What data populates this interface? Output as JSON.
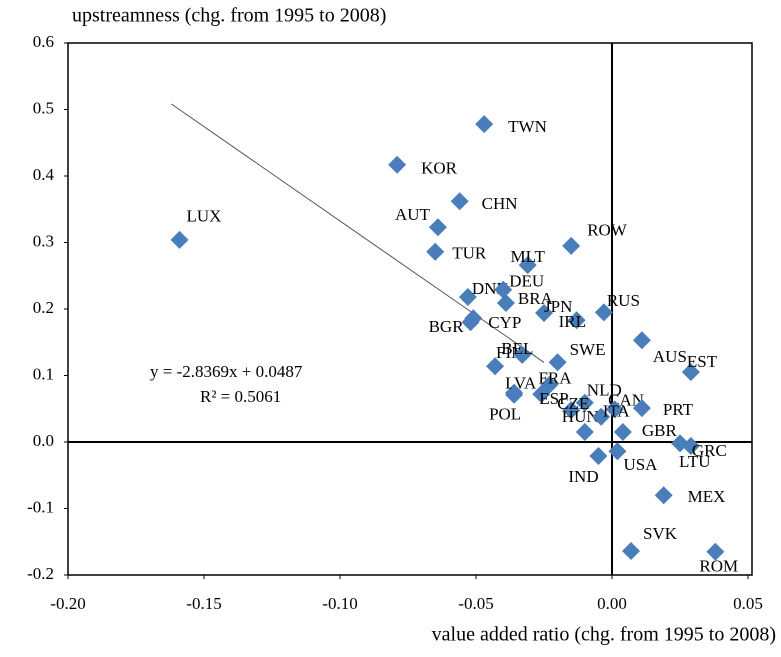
{
  "chart_data": {
    "type": "scatter",
    "x_axis_label": "value added ratio (chg. from 1995 to 2008)",
    "y_axis_label": "upstreamness (chg. from 1995 to 2008)",
    "labels": [
      "LUX",
      "KOR",
      "TWN",
      "CHN",
      "AUT",
      "TUR",
      "ROW",
      "MLT",
      "DNK",
      "DEU",
      "BRA",
      "JPN",
      "IRL",
      "RUS",
      "BGR",
      "CYP",
      "FIN",
      "BEL",
      "SWE",
      "AUS",
      "EST",
      "LVA",
      "POL",
      "ESP",
      "FRA",
      "NLD",
      "CZE",
      "HUN",
      "CAN",
      "ITA",
      "PRT",
      "GBR",
      "USA",
      "IND",
      "LTU",
      "GRC",
      "MEX",
      "SVK",
      "ROM"
    ],
    "x": [
      -0.159,
      -0.079,
      -0.047,
      -0.056,
      -0.064,
      -0.065,
      -0.015,
      -0.031,
      -0.053,
      -0.04,
      -0.039,
      -0.025,
      -0.013,
      -0.003,
      -0.052,
      -0.051,
      -0.043,
      -0.033,
      -0.02,
      0.011,
      0.029,
      -0.036,
      -0.036,
      -0.026,
      -0.023,
      -0.01,
      -0.015,
      -0.01,
      -0.004,
      0.001,
      0.011,
      0.004,
      0.002,
      -0.005,
      0.025,
      0.029,
      0.019,
      0.007,
      0.038
    ],
    "y": [
      0.304,
      0.417,
      0.478,
      0.362,
      0.323,
      0.286,
      0.295,
      0.266,
      0.218,
      0.229,
      0.209,
      0.194,
      0.183,
      0.195,
      0.18,
      0.186,
      0.114,
      0.131,
      0.12,
      0.153,
      0.105,
      0.074,
      0.071,
      0.072,
      0.086,
      0.059,
      0.048,
      0.015,
      0.038,
      0.049,
      0.051,
      0.015,
      -0.014,
      -0.021,
      -0.002,
      -0.006,
      -0.08,
      -0.164,
      -0.165
    ],
    "color": "#4a7ebb",
    "trendline": {
      "slope": -2.8369,
      "intercept": 0.0487,
      "x": [
        -0.162,
        -0.025
      ]
    },
    "equation": "y = -2.8369x + 0.0487",
    "r_squared": "R² = 0.5061",
    "xlim": [
      -0.2,
      0.05
    ],
    "ylim": [
      -0.2,
      0.6
    ],
    "xticks": [
      {
        "value": -0.2,
        "label": "-0.20"
      },
      {
        "value": -0.15,
        "label": "-0.15"
      },
      {
        "value": -0.1,
        "label": "-0.10"
      },
      {
        "value": -0.05,
        "label": "-0.05"
      },
      {
        "value": 0,
        "label": "0.00"
      },
      {
        "value": 0.05,
        "label": "0.05"
      }
    ],
    "yticks": [
      -0.2,
      -0.1,
      {
        "value": 0,
        "label": "0.0"
      },
      0.1,
      0.2,
      0.3,
      0.4,
      0.5,
      0.6
    ]
  }
}
